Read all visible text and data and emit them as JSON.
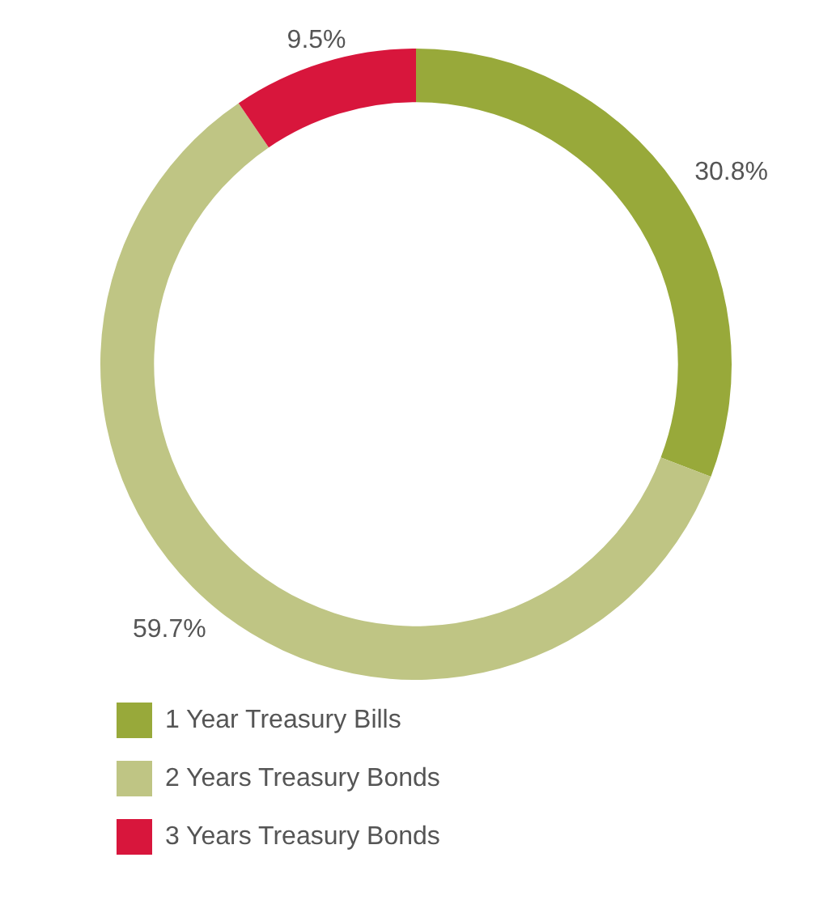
{
  "chart_data": {
    "type": "donut",
    "categories": [
      "1 Year Treasury Bills",
      "2 Years Treasury Bonds",
      "3 Years Treasury Bonds"
    ],
    "values": [
      30.8,
      59.7,
      9.5
    ],
    "colors": [
      "#98a93a",
      "#bfc584",
      "#d8163c"
    ],
    "value_labels": [
      "30.8%",
      "59.7%",
      "9.5%"
    ],
    "legend": "bottom"
  }
}
